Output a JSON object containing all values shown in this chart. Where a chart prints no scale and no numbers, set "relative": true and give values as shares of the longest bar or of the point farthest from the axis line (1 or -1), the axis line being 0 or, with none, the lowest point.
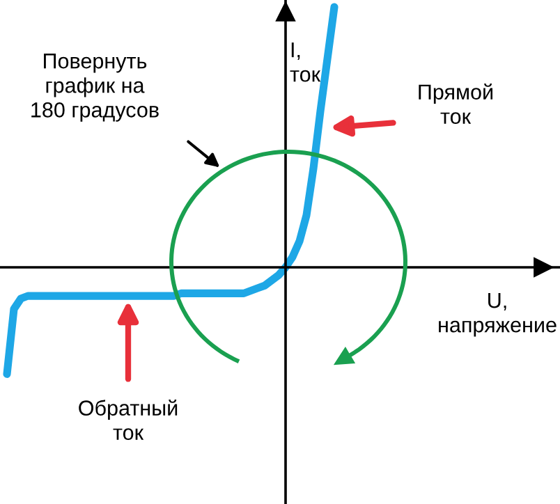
{
  "chart_data": {
    "type": "line",
    "relative": true,
    "xlabel": "U,\nнапряжение",
    "ylabel": "I,\nток",
    "categories": [
      null,
      null,
      null,
      null,
      null,
      null,
      null,
      null,
      null,
      null,
      null,
      null,
      null,
      null,
      null,
      null,
      null,
      null,
      null,
      null,
      null,
      null,
      null,
      null,
      null,
      null,
      null,
      null,
      null,
      null,
      null,
      null,
      null,
      null,
      null,
      null,
      null,
      null,
      null,
      null,
      null,
      null,
      null,
      null,
      null,
      null,
      null,
      null
    ],
    "series": [
      {
        "color": "#1ea7e6",
        "values": [
          -0.41,
          -0.16,
          -0.12,
          -0.11,
          -0.11,
          -0.11,
          -0.11,
          -0.11,
          -0.11,
          -0.11,
          -0.11,
          -0.11,
          -0.11,
          -0.11,
          -0.11,
          -0.11,
          -0.11,
          -0.11,
          -0.11,
          -0.11,
          -0.11,
          -0.11,
          -0.11,
          -0.11,
          -0.11,
          -0.1,
          -0.1,
          -0.1,
          -0.1,
          -0.1,
          -0.1,
          -0.1,
          -0.1,
          -0.1,
          -0.1,
          -0.09,
          -0.08,
          -0.07,
          -0.05,
          -0.03,
          0,
          0.04,
          0.1,
          0.2,
          0.38,
          0.6,
          0.8,
          1.0
        ]
      }
    ],
    "annotations": [
      "Повернуть\nграфик на\n180 градусов",
      "Прямой\nток",
      "Обратный\nток"
    ],
    "grid": false,
    "legend": false,
    "marker": "none",
    "line_style": "solid"
  }
}
